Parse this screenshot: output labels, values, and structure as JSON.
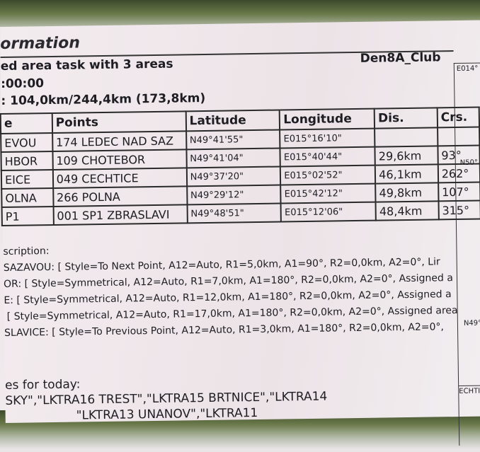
{
  "header": {
    "title": "ormation",
    "club": "Den8A_Club",
    "task_type": "ed area task with 3 areas",
    "time": ":00:00",
    "distance": ": 104,0km/244,4km (173,8km)"
  },
  "table": {
    "columns": [
      "e",
      "Points",
      "Latitude",
      "Longitude",
      "Dis.",
      "Crs."
    ],
    "rows": [
      [
        "EVOU",
        "174 LEDEC NAD SAZ",
        "N49°41'55\"",
        "E015°16'10\"",
        "",
        ""
      ],
      [
        "HBOR",
        "109 CHOTEBOR",
        "N49°41'04\"",
        "E015°40'44\"",
        "29,6km",
        "93°"
      ],
      [
        "EICE",
        "049 CECHTICE",
        "N49°37'20\"",
        "E015°02'52\"",
        "46,1km",
        "262°"
      ],
      [
        "OLNA",
        "266 POLNA",
        "N49°29'12\"",
        "E015°42'12\"",
        "49,8km",
        "107°"
      ],
      [
        "P1",
        "001 SP1 ZBRASLAVI",
        "N49°48'51\"",
        "E015°12'06\"",
        "48,4km",
        "315°"
      ]
    ]
  },
  "description": {
    "heading": "scription:",
    "lines": [
      "SAZAVOU: [ Style=To Next Point, A12=Auto, R1=5,0km, A1=90°, R2=0,0km, A2=0°, Lir",
      "OR: [ Style=Symmetrical, A12=Auto, R1=7,0km, A1=180°, R2=0,0km, A2=0°, Assigned a",
      "E: [ Style=Symmetrical, A12=Auto, R1=12,0km, A1=180°, R2=0,0km, A2=0°, Assigned a",
      "[ Style=Symmetrical, A12=Auto, R1=17,0km, A1=180°, R2=0,0km, A2=0°, Assigned area",
      "SLAVICE: [ Style=To Previous Point, A12=Auto, R1=3,0km, A1=180°, R2=0,0km, A2=0°,"
    ]
  },
  "zones": {
    "heading": "es for today:",
    "line1": "SKY\",\"LKTRA16 TREST\",\"LKTRA15 BRTNICE\",\"LKTRA14",
    "line2": "\"LKTRA13 UNANOV\",\"LKTRA11"
  },
  "map": {
    "labels": [
      "E014°",
      "N50°",
      "N49°",
      "ECHTI"
    ]
  }
}
